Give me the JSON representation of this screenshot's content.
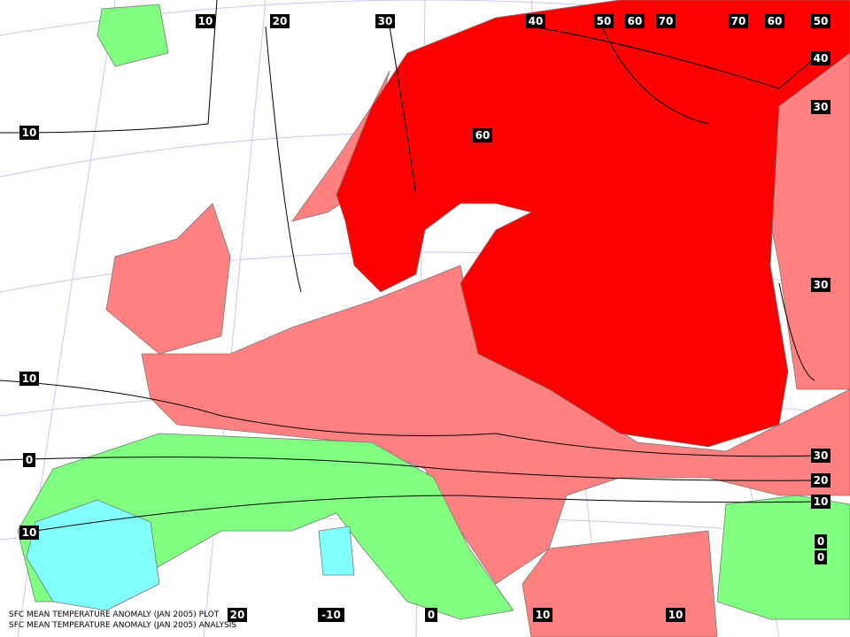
{
  "contour_labels": [
    10,
    20,
    30,
    40,
    50,
    60,
    70,
    70,
    60,
    50,
    40,
    30,
    60,
    10,
    30,
    10,
    0,
    30,
    20,
    10,
    10,
    0,
    0,
    20,
    -10,
    0,
    10,
    10
  ],
  "footer": [
    "SFC MEAN TEMPERATURE ANOMALY (JAN 2005) PLOT",
    "SFC MEAN TEMPERATURE ANOMALY (JAN 2005) ANALYSIS"
  ]
}
